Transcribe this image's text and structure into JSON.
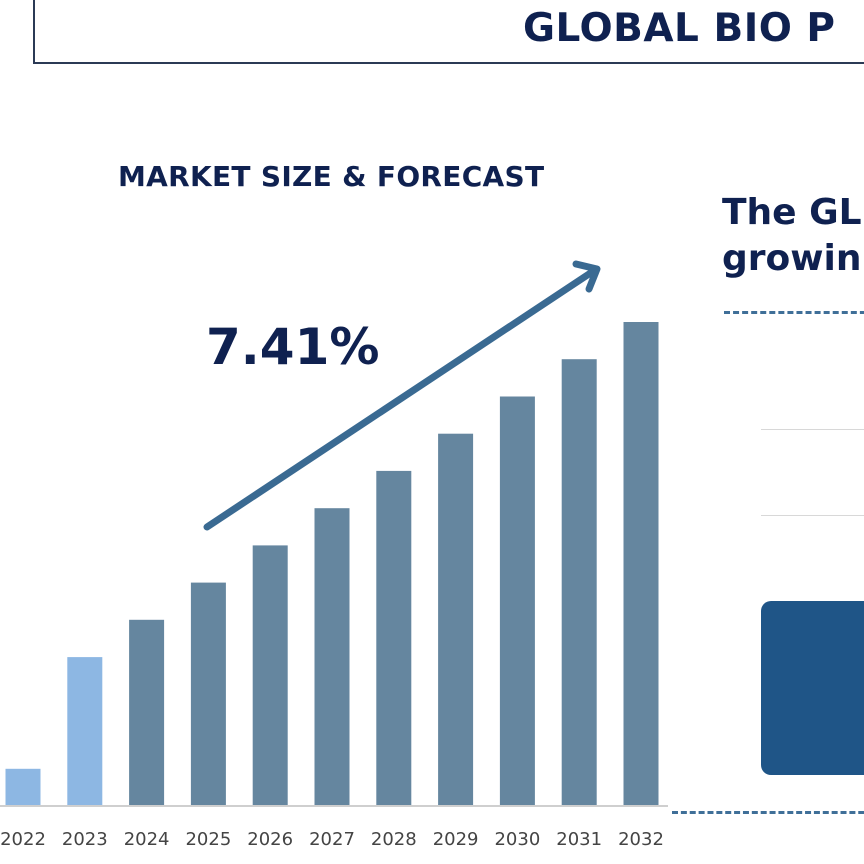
{
  "header": {
    "title": "GLOBAL BIO P"
  },
  "section_title": "MARKET SIZE & FORECAST",
  "cagr": "7.41%",
  "side_panel": {
    "heading_line1": "The GL",
    "heading_line2": "growin"
  },
  "colors": {
    "historical_bar": "#8db7e3",
    "forecast_bar": "#65869f",
    "navy_text": "#0f2150",
    "arrow": "#3a6a92",
    "side_box": "#1f5587"
  },
  "chart_data": {
    "type": "bar",
    "categories": [
      "2022",
      "2023",
      "2024",
      "2025",
      "2026",
      "2027",
      "2028",
      "2029",
      "2030",
      "2031",
      "2032"
    ],
    "values": [
      1.0,
      4.0,
      5.0,
      6.0,
      7.0,
      8.0,
      9.0,
      10.0,
      11.0,
      12.0,
      13.0
    ],
    "historical_count": 2,
    "annotation": "7.41%",
    "trend_arrow": true,
    "ylim": [
      0,
      13.0
    ],
    "grid": false,
    "title": "MARKET SIZE & FORECAST",
    "xlabel": "",
    "ylabel": ""
  }
}
